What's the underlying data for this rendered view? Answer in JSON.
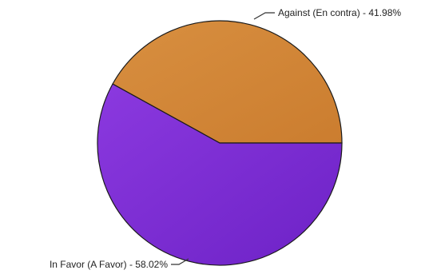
{
  "chart_data": {
    "type": "pie",
    "title": "",
    "slices": [
      {
        "label": "Against (En contra)",
        "value": 41.98,
        "display": "Against (En contra) - 41.98%",
        "color": "#d3883a"
      },
      {
        "label": "In Favor (A Favor)",
        "value": 58.02,
        "display": "In Favor (A Favor) - 58.02%",
        "color": "#7b2fd2"
      }
    ],
    "start_angle_deg": 0,
    "direction": "counterclockwise",
    "legend": "none"
  }
}
